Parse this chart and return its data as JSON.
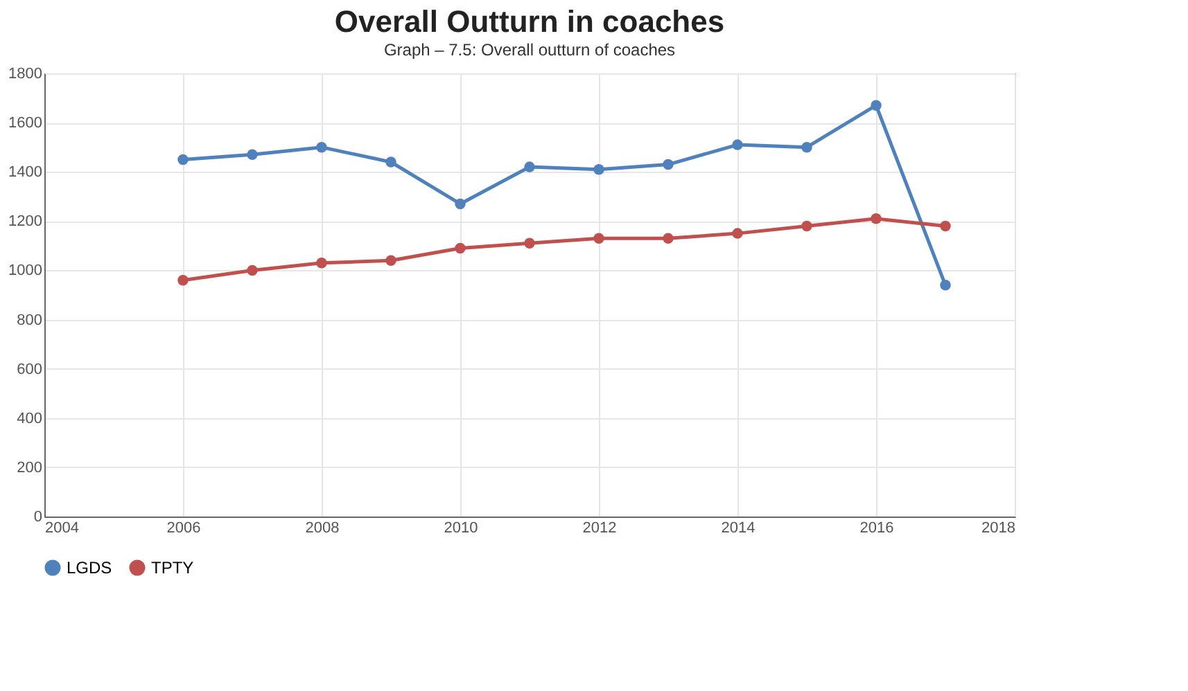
{
  "chart_data": {
    "type": "line",
    "title": "Overall Outturn in coaches",
    "annotations": [
      "Graph – 7.5: Overall outturn of coaches"
    ],
    "x": [
      2006,
      2007,
      2008,
      2009,
      2010,
      2011,
      2012,
      2013,
      2014,
      2015,
      2016,
      2017
    ],
    "series": [
      {
        "name": "LGDS",
        "color": "#4f81bd",
        "values": [
          1450,
          1470,
          1500,
          1440,
          1270,
          1420,
          1410,
          1430,
          1510,
          1500,
          1670,
          940
        ]
      },
      {
        "name": "TPTY",
        "color": "#c0504d",
        "values": [
          960,
          1000,
          1030,
          1040,
          1090,
          1110,
          1130,
          1130,
          1150,
          1180,
          1210,
          1180
        ]
      }
    ],
    "xlim": [
      2004,
      2018
    ],
    "xticks": [
      2004,
      2006,
      2008,
      2010,
      2012,
      2014,
      2016,
      2018
    ],
    "ylim": [
      0,
      1800
    ],
    "yticks": [
      0,
      200,
      400,
      600,
      800,
      1000,
      1200,
      1400,
      1600,
      1800
    ],
    "grid": true,
    "legend": "bottom",
    "marker": "circle",
    "line_style": "solid"
  }
}
